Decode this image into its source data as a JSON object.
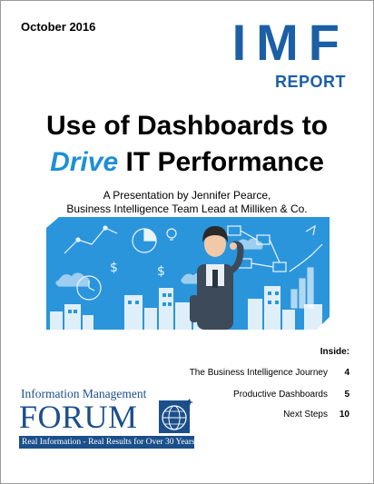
{
  "date": "October 2016",
  "masthead": {
    "imf": "IMF",
    "report": "REPORT"
  },
  "title": {
    "line1": "Use of Dashboards to",
    "line2_emphasis": "Drive",
    "line2_rest": "IT Performance"
  },
  "subtitle": {
    "line1": "A Presentation by Jennifer Pearce,",
    "line2": "Business Intelligence Team Lead at Milliken & Co."
  },
  "inside": {
    "label": "Inside:",
    "items": [
      {
        "label": "The Business Intelligence Journey",
        "page": "4"
      },
      {
        "label": "Productive Dashboards",
        "page": "5"
      },
      {
        "label": "Next Steps",
        "page": "10"
      }
    ]
  },
  "logo": {
    "top": "Information Management",
    "name": "FORUM",
    "tagline": "Real Information - Real Results for Over 30 Years"
  },
  "colors": {
    "brand_blue": "#1b5fa6",
    "accent_blue": "#1e8fd6",
    "hero_blue": "#2b95dc"
  }
}
